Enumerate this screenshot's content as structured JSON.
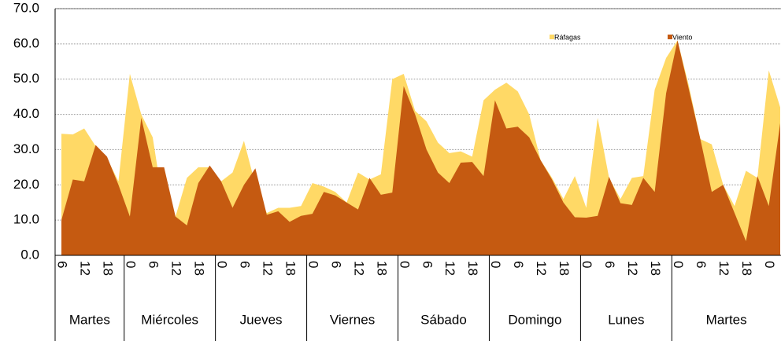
{
  "chart_data": {
    "type": "area",
    "categories": [
      "6",
      null,
      "12",
      null,
      "18",
      null,
      "0",
      null,
      "6",
      null,
      "12",
      null,
      "18",
      null,
      "0",
      null,
      "6",
      null,
      "12",
      null,
      "18",
      null,
      "0",
      null,
      "6",
      null,
      "12",
      null,
      "18",
      null,
      "0",
      null,
      "6",
      null,
      "12",
      null,
      "18",
      null,
      "0",
      null,
      "6",
      null,
      "12",
      null,
      "18",
      null,
      "0",
      null,
      "6",
      null,
      "12",
      null,
      "18",
      null,
      "0",
      null,
      "6",
      null,
      "12",
      null,
      "18",
      null,
      "0",
      null
    ],
    "groups": [
      "Martes",
      "Miércoles",
      "Jueves",
      "Viernes",
      "Sábado",
      "Domingo",
      "Lunes",
      "Martes"
    ],
    "series": [
      {
        "name": "Ráfagas",
        "color": "#ffd966",
        "values": [
          34.5,
          34.3,
          36,
          31,
          27.5,
          21,
          51.5,
          40,
          33.5,
          13,
          11,
          22,
          25,
          25,
          21,
          23.5,
          32.5,
          20,
          12,
          13.5,
          13.5,
          14,
          20.5,
          19.5,
          18,
          15,
          23.5,
          21.5,
          23,
          50,
          51.5,
          41,
          38,
          32,
          29,
          29.5,
          28,
          44,
          47,
          49,
          46.5,
          40,
          27,
          22,
          16,
          22.5,
          13.5,
          39,
          22,
          16,
          22,
          22.5,
          47,
          56,
          61,
          48,
          33,
          31.5,
          20,
          14,
          24,
          22,
          52.5,
          42
        ]
      },
      {
        "name": "Viento",
        "color": "#c55a11",
        "values": [
          10,
          21.5,
          21,
          31.3,
          28,
          20,
          11,
          39,
          25,
          25,
          11,
          8.5,
          20.5,
          25.5,
          21,
          13.5,
          20,
          24.7,
          11.5,
          12.5,
          9.5,
          11.2,
          11.8,
          18,
          17,
          15,
          13,
          22,
          17.2,
          17.8,
          48,
          40,
          30,
          23.5,
          20.5,
          26.3,
          26.5,
          22.5,
          44,
          36,
          36.5,
          33.5,
          27,
          21.5,
          15,
          10.8,
          10.7,
          11.2,
          22.3,
          14.8,
          14.3,
          22,
          18,
          46,
          61,
          47,
          33,
          18,
          20,
          12,
          4,
          22.5,
          14,
          37.5
        ]
      }
    ],
    "ylim": [
      0,
      70
    ],
    "yticks": [
      {
        "value": 0,
        "label": "0.0"
      },
      {
        "value": 10,
        "label": "10.0"
      },
      {
        "value": 20,
        "label": "20.0"
      },
      {
        "value": 30,
        "label": "30.0"
      },
      {
        "value": 40,
        "label": "40.0"
      },
      {
        "value": 50,
        "label": "50.0"
      },
      {
        "value": 60,
        "label": "60.0"
      },
      {
        "value": 70,
        "label": "70.0"
      }
    ],
    "grid": true,
    "legend": "top-right"
  }
}
